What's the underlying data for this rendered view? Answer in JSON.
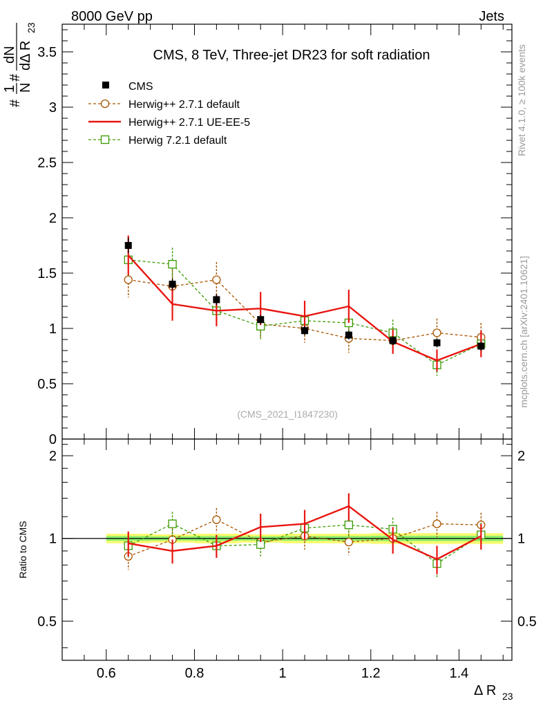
{
  "header": {
    "left": "8000 GeV pp",
    "right": "Jets"
  },
  "side_labels": {
    "rivet": "Rivet 4.1.0, ≥ 100k events",
    "mcplots": "mcplots.cern.ch [arXiv:2401.10621]"
  },
  "colors": {
    "cms": "#000000",
    "herwig271": "#a85400",
    "herwig271ue": "#e8140f",
    "herwig721": "#3a9a00",
    "band_green": "#8cf06e",
    "band_yellow": "#fafa70"
  },
  "chart_data": [
    {
      "type": "line",
      "title": "CMS, 8 TeV, Three-jet DR23 for soft radiation",
      "watermark": "(CMS_2021_I1847230)",
      "ylabel_parts": {
        "hash1": "#",
        "one": "1",
        "N": "N",
        "hash2": "#",
        "dN": "dN",
        "dDelta": "dΔ R",
        "sub": "23"
      },
      "ylim": [
        0,
        3.75
      ],
      "yticks": [
        0,
        0.5,
        1,
        1.5,
        2,
        2.5,
        3,
        3.5
      ],
      "ytick_labels": [
        "0",
        "0.5",
        "1",
        "1.5",
        "2",
        "2.5",
        "3",
        "3.5"
      ],
      "xlim": [
        0.5,
        1.52
      ],
      "x": [
        0.65,
        0.75,
        0.85,
        0.95,
        1.05,
        1.15,
        1.25,
        1.35,
        1.45
      ],
      "series": [
        {
          "name": "CMS",
          "style": "data",
          "values": [
            1.75,
            1.4,
            1.26,
            1.08,
            0.98,
            0.94,
            0.89,
            0.87,
            0.84
          ],
          "errors": [
            0.07,
            0.05,
            0.05,
            0.04,
            0.04,
            0.04,
            0.04,
            0.04,
            0.04
          ]
        },
        {
          "name": "Herwig++ 2.7.1 default",
          "style": "circle",
          "values": [
            1.44,
            1.38,
            1.44,
            1.04,
            1.0,
            0.91,
            0.89,
            0.96,
            0.92
          ],
          "errors": [
            0.16,
            0.15,
            0.16,
            0.12,
            0.13,
            0.13,
            0.12,
            0.13,
            0.13
          ]
        },
        {
          "name": "Herwig++ 2.7.1 UE-EE-5",
          "style": "line",
          "values": [
            1.66,
            1.22,
            1.16,
            1.18,
            1.11,
            1.2,
            0.88,
            0.71,
            0.86
          ],
          "errors": [
            0.18,
            0.15,
            0.14,
            0.15,
            0.14,
            0.15,
            0.11,
            0.1,
            0.12
          ]
        },
        {
          "name": "Herwig 7.2.1 default",
          "style": "square",
          "values": [
            1.62,
            1.58,
            1.16,
            1.02,
            1.07,
            1.05,
            0.96,
            0.67,
            0.86
          ],
          "errors": [
            0.15,
            0.15,
            0.13,
            0.12,
            0.13,
            0.13,
            0.12,
            0.1,
            0.12
          ]
        }
      ]
    },
    {
      "type": "line",
      "ylabel": "Ratio to CMS",
      "xlabel_main": "Δ R",
      "xlabel_sub": "23",
      "ylim": [
        0.36,
        2.3
      ],
      "log": true,
      "yticks": [
        0.5,
        1,
        2
      ],
      "ytick_labels": [
        "0.5",
        "1",
        "2"
      ],
      "xticks": [
        0.6,
        0.8,
        1,
        1.2,
        1.4
      ],
      "xtick_labels": [
        "0.6",
        "0.8",
        "1",
        "1.2",
        "1.4"
      ],
      "xlim": [
        0.5,
        1.52
      ],
      "x": [
        0.65,
        0.75,
        0.85,
        0.95,
        1.05,
        1.15,
        1.25,
        1.35,
        1.45
      ],
      "band_half_widths": [
        0.04,
        0.035,
        0.04,
        0.035,
        0.04,
        0.04,
        0.045,
        0.045,
        0.045
      ],
      "series": [
        {
          "name": "Herwig++ 2.7.1 default",
          "style": "circle",
          "values": [
            0.86,
            0.99,
            1.17,
            0.97,
            1.02,
            0.97,
            1.0,
            1.13,
            1.12
          ],
          "errors": [
            0.09,
            0.1,
            0.12,
            0.1,
            0.11,
            0.1,
            0.1,
            0.12,
            0.12
          ]
        },
        {
          "name": "Herwig++ 2.7.1 UE-EE-5",
          "style": "line",
          "values": [
            0.96,
            0.9,
            0.94,
            1.1,
            1.13,
            1.31,
            0.99,
            0.84,
            1.02
          ],
          "errors": [
            0.1,
            0.09,
            0.09,
            0.13,
            0.14,
            0.15,
            0.11,
            0.1,
            0.11
          ]
        },
        {
          "name": "Herwig 7.2.1 default",
          "style": "square",
          "values": [
            0.94,
            1.13,
            0.94,
            0.95,
            1.09,
            1.12,
            1.08,
            0.81,
            1.03
          ],
          "errors": [
            0.09,
            0.12,
            0.09,
            0.09,
            0.11,
            0.11,
            0.11,
            0.09,
            0.11
          ]
        }
      ]
    }
  ]
}
